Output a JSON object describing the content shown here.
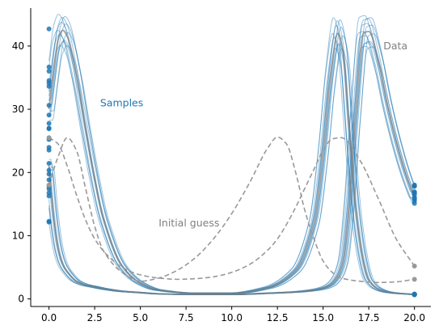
{
  "chart_data": {
    "type": "line",
    "title": "",
    "xlabel": "",
    "ylabel": "",
    "xlim": [
      -1,
      20.9
    ],
    "ylim": [
      -1.2,
      46
    ],
    "x_ticks": [
      0,
      2.5,
      5,
      7.5,
      10,
      12.5,
      15,
      17.5,
      20
    ],
    "x_tick_labels": [
      "0.0",
      "2.5",
      "5.0",
      "7.5",
      "10.0",
      "12.5",
      "15.0",
      "17.5",
      "20.0"
    ],
    "y_ticks": [
      0,
      10,
      20,
      30,
      40
    ],
    "y_tick_labels": [
      "0",
      "10",
      "20",
      "30",
      "40"
    ],
    "grid": false,
    "legend": "none",
    "colors": {
      "samples": "#1f77b4",
      "data": "#808080",
      "initial_guess": "#999999"
    },
    "annotations": [
      {
        "text": "Samples",
        "x": 2.8,
        "y": 31,
        "color": "#1f77b4"
      },
      {
        "text": "Data",
        "x": 18.3,
        "y": 40,
        "color": "#808080"
      },
      {
        "text": "Initial guess",
        "x": 6.0,
        "y": 12,
        "color": "#808080"
      }
    ],
    "series": [
      {
        "role": "data",
        "x": [
          0,
          0.25,
          0.5,
          0.75,
          1.0,
          1.5,
          2.0,
          2.5,
          3.0,
          4.0,
          5.0,
          6.0,
          8.0,
          10.0,
          12.0,
          13.5,
          14.5,
          15.0,
          15.4,
          15.8,
          16.1,
          16.4,
          16.8,
          17.2,
          17.5,
          18.0,
          18.5,
          19.0,
          19.5,
          20.0
        ],
        "prey": [
          30,
          36,
          41,
          42.5,
          41.5,
          35.5,
          27,
          19,
          12.5,
          5.2,
          2.5,
          1.4,
          0.9,
          0.9,
          1.8,
          4.5,
          12,
          23,
          35,
          42,
          39,
          28,
          14,
          6,
          3,
          1.6,
          1.1,
          0.9,
          0.8,
          0.7
        ],
        "predator": [
          21,
          13,
          8,
          5.5,
          4.3,
          2.8,
          2.2,
          1.9,
          1.6,
          1.2,
          1.0,
          0.8,
          0.7,
          0.7,
          0.9,
          1.1,
          1.4,
          1.7,
          2.2,
          3.5,
          6,
          14,
          30,
          42,
          42.3,
          38,
          31,
          25,
          20,
          16
        ]
      },
      {
        "role": "initial_guess",
        "x": [
          0,
          0.5,
          1,
          1.5,
          2,
          2.5,
          3,
          4,
          5,
          6,
          7,
          8,
          9,
          10,
          11,
          12,
          12.5,
          13,
          13.5,
          14,
          14.5,
          15,
          15.5,
          16,
          17,
          18,
          19,
          20
        ],
        "prey": [
          25.5,
          24.5,
          21,
          16.5,
          12.5,
          9.5,
          7.5,
          5,
          3.8,
          3.3,
          3.1,
          3.2,
          3.5,
          4.2,
          5.5,
          7.8,
          9.5,
          11.8,
          14.5,
          17.5,
          20.5,
          23.5,
          25.3,
          25.5,
          22,
          16,
          9.5,
          5.2
        ],
        "predator": [
          18,
          22.5,
          25.5,
          23.5,
          17.5,
          11.5,
          7.5,
          4.2,
          2.8,
          3.3,
          4.5,
          6.5,
          9.5,
          13.5,
          18.5,
          24,
          25.6,
          24.5,
          20,
          14,
          9.5,
          6,
          4.2,
          3.3,
          2.8,
          2.6,
          2.7,
          3.1
        ]
      }
    ],
    "samples": {
      "count": 12,
      "spread": "approx. +/- 0.3 in time and +/- 7% in amplitude around the data curves"
    }
  }
}
